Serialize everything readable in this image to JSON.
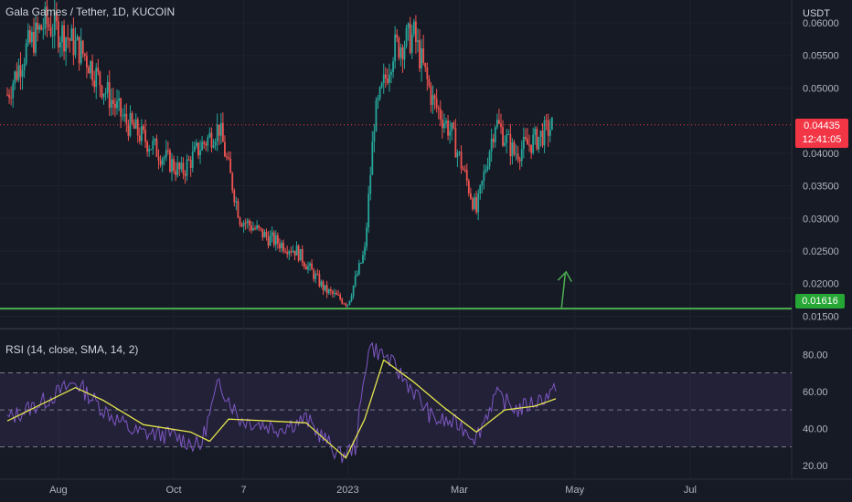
{
  "header": {
    "title": "Gala Games / Tether, 1D, KUCOIN"
  },
  "price_axis": {
    "currency": "USDT",
    "ticks": [
      "0.06000",
      "0.05500",
      "0.05000",
      "0.04000",
      "0.03500",
      "0.03000",
      "0.02500",
      "0.02000",
      "0.01500"
    ],
    "current_price": "0.04435",
    "countdown": "12:41:05",
    "support_level": "0.01616"
  },
  "rsi_panel": {
    "label": "RSI (14, close, SMA, 14, 2)",
    "ticks": [
      "80.00",
      "60.00",
      "40.00",
      "20.00"
    ],
    "upper_band": 70,
    "middle_band": 50,
    "lower_band": 30
  },
  "time_axis": {
    "labels": [
      "Aug",
      "Oct",
      "7",
      "2023",
      "Mar",
      "May",
      "Jul"
    ]
  },
  "colors": {
    "background": "#161a25",
    "up_candle": "#26a69a",
    "down_candle": "#ef5350",
    "support_line": "#4caf50",
    "rsi_line": "#7e57c2",
    "rsi_sma": "#e6e64d",
    "price_badge": "#f23645",
    "support_badge": "#26a634"
  },
  "chart_data": [
    {
      "type": "candlestick",
      "title": "Gala Games / Tether, 1D, KUCOIN",
      "ylabel": "USDT",
      "ylim": [
        0.0145,
        0.0635
      ],
      "y_scale": "linear",
      "current_price": 0.04435,
      "support_line": 0.01616,
      "annotation": "green arrow pointing up from support line",
      "approx_close_path": [
        {
          "date": "2022-07-05",
          "close": 0.049
        },
        {
          "date": "2022-07-15",
          "close": 0.056
        },
        {
          "date": "2022-07-25",
          "close": 0.06
        },
        {
          "date": "2022-08-05",
          "close": 0.058
        },
        {
          "date": "2022-08-15",
          "close": 0.055
        },
        {
          "date": "2022-08-25",
          "close": 0.05
        },
        {
          "date": "2022-09-05",
          "close": 0.045
        },
        {
          "date": "2022-09-20",
          "close": 0.041
        },
        {
          "date": "2022-10-05",
          "close": 0.037
        },
        {
          "date": "2022-10-15",
          "close": 0.041
        },
        {
          "date": "2022-10-25",
          "close": 0.044
        },
        {
          "date": "2022-11-05",
          "close": 0.03
        },
        {
          "date": "2022-11-20",
          "close": 0.027
        },
        {
          "date": "2022-12-05",
          "close": 0.025
        },
        {
          "date": "2022-12-20",
          "close": 0.019
        },
        {
          "date": "2023-01-01",
          "close": 0.017
        },
        {
          "date": "2023-01-10",
          "close": 0.025
        },
        {
          "date": "2023-01-15",
          "close": 0.045
        },
        {
          "date": "2023-01-25",
          "close": 0.056
        },
        {
          "date": "2023-02-05",
          "close": 0.058
        },
        {
          "date": "2023-02-15",
          "close": 0.048
        },
        {
          "date": "2023-02-25",
          "close": 0.043
        },
        {
          "date": "2023-03-10",
          "close": 0.031
        },
        {
          "date": "2023-03-20",
          "close": 0.045
        },
        {
          "date": "2023-03-30",
          "close": 0.04
        },
        {
          "date": "2023-04-10",
          "close": 0.042
        },
        {
          "date": "2023-04-20",
          "close": 0.04435
        }
      ]
    },
    {
      "type": "line",
      "title": "RSI (14, close, SMA, 14, 2)",
      "ylim": [
        15,
        90
      ],
      "bands": [
        30,
        50,
        70
      ],
      "series": [
        {
          "name": "RSI",
          "points": [
            {
              "date": "2022-07-05",
              "value": 45
            },
            {
              "date": "2022-07-25",
              "value": 55
            },
            {
              "date": "2022-08-10",
              "value": 65
            },
            {
              "date": "2022-08-25",
              "value": 50
            },
            {
              "date": "2022-09-10",
              "value": 38
            },
            {
              "date": "2022-10-01",
              "value": 36
            },
            {
              "date": "2022-10-15",
              "value": 30
            },
            {
              "date": "2022-10-25",
              "value": 65
            },
            {
              "date": "2022-11-05",
              "value": 45
            },
            {
              "date": "2022-11-25",
              "value": 40
            },
            {
              "date": "2022-12-10",
              "value": 45
            },
            {
              "date": "2022-12-28",
              "value": 25
            },
            {
              "date": "2023-01-05",
              "value": 30
            },
            {
              "date": "2023-01-12",
              "value": 85
            },
            {
              "date": "2023-01-22",
              "value": 78
            },
            {
              "date": "2023-02-05",
              "value": 60
            },
            {
              "date": "2023-02-15",
              "value": 45
            },
            {
              "date": "2023-03-01",
              "value": 42
            },
            {
              "date": "2023-03-10",
              "value": 35
            },
            {
              "date": "2023-03-20",
              "value": 58
            },
            {
              "date": "2023-04-01",
              "value": 50
            },
            {
              "date": "2023-04-15",
              "value": 57
            },
            {
              "date": "2023-04-21",
              "value": 60
            }
          ]
        },
        {
          "name": "SMA",
          "points": [
            {
              "date": "2022-07-05",
              "value": 44
            },
            {
              "date": "2022-08-10",
              "value": 62
            },
            {
              "date": "2022-08-25",
              "value": 55
            },
            {
              "date": "2022-09-15",
              "value": 42
            },
            {
              "date": "2022-10-10",
              "value": 38
            },
            {
              "date": "2022-10-20",
              "value": 33
            },
            {
              "date": "2022-10-30",
              "value": 45
            },
            {
              "date": "2022-11-20",
              "value": 44
            },
            {
              "date": "2022-12-10",
              "value": 43
            },
            {
              "date": "2022-12-31",
              "value": 24
            },
            {
              "date": "2023-01-10",
              "value": 45
            },
            {
              "date": "2023-01-20",
              "value": 77
            },
            {
              "date": "2023-02-05",
              "value": 65
            },
            {
              "date": "2023-02-20",
              "value": 52
            },
            {
              "date": "2023-03-10",
              "value": 38
            },
            {
              "date": "2023-03-25",
              "value": 50
            },
            {
              "date": "2023-04-10",
              "value": 52
            },
            {
              "date": "2023-04-21",
              "value": 56
            }
          ]
        }
      ]
    }
  ]
}
